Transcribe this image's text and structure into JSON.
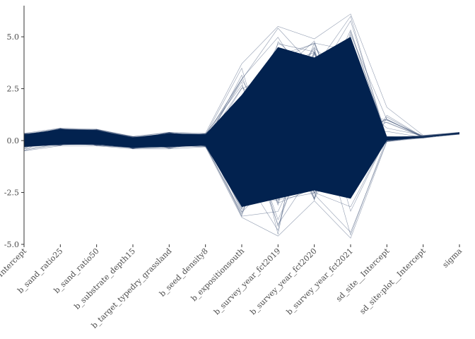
{
  "chart_data": {
    "type": "line",
    "title": "",
    "xlabel": "",
    "ylabel": "",
    "ylim": [
      -5.0,
      6.5
    ],
    "y_ticks": [
      "-5.0",
      "-2.5",
      "0.0",
      "2.5",
      "5.0"
    ],
    "y_tick_values": [
      -5.0,
      -2.5,
      0.0,
      2.5,
      5.0
    ],
    "categories": [
      "Intercept",
      "b_sand_ratio25",
      "b_sand_ratio50",
      "b_substrate_depth15",
      "b_target_typedry_grassland",
      "b_seed_density8",
      "b_expositionsouth",
      "b_survey_year_fct2019",
      "b_survey_year_fct2020",
      "b_survey_year_fct2021",
      "sd_site__Intercept",
      "sd_site:plot__Intercept",
      "sigma"
    ],
    "band": {
      "lower": [
        -0.3,
        -0.2,
        -0.2,
        -0.35,
        -0.3,
        -0.25,
        -3.2,
        -2.8,
        -2.4,
        -2.8,
        0.0,
        0.15,
        0.32
      ],
      "upper": [
        0.3,
        0.55,
        0.5,
        0.15,
        0.35,
        0.3,
        2.2,
        4.5,
        4.0,
        5.0,
        0.2,
        0.2,
        0.38
      ]
    },
    "extremes": {
      "lower": [
        -0.5,
        -0.25,
        -0.25,
        -0.4,
        -0.4,
        -0.3,
        -3.7,
        -4.6,
        -2.9,
        -4.7,
        -0.05,
        0.12,
        0.3
      ],
      "upper": [
        0.35,
        0.6,
        0.55,
        0.2,
        0.4,
        0.35,
        3.7,
        5.5,
        4.9,
        6.1,
        1.6,
        0.25,
        0.4
      ]
    },
    "color": "#02224f",
    "grid": false,
    "legend": "none"
  }
}
